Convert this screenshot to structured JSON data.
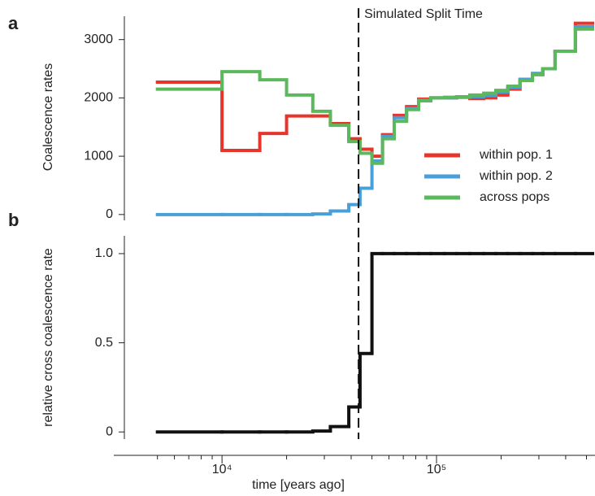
{
  "chart_data": [
    {
      "type": "step",
      "panel_label": "a",
      "ylabel": "Coalescence rates",
      "x": [
        5000,
        10000,
        15000,
        20000,
        26500,
        32000,
        39000,
        44000,
        50000,
        56000,
        63500,
        72500,
        82500,
        94000,
        109000,
        124000,
        143000,
        166000,
        189000,
        215000,
        245000,
        280000,
        313000,
        357000,
        444000
      ],
      "series": [
        {
          "name": "within pop. 1",
          "color": "#e8352b",
          "values": [
            2270,
            1100,
            1390,
            1690,
            1690,
            1560,
            1300,
            1120,
            1000,
            1370,
            1700,
            1850,
            1980,
            2000,
            2000,
            2010,
            1990,
            2000,
            2050,
            2150,
            2300,
            2400,
            2500,
            2800,
            3280
          ]
        },
        {
          "name": "within pop. 2",
          "color": "#4a9fd8",
          "values": [
            0,
            0,
            0,
            0,
            10,
            60,
            170,
            450,
            920,
            1340,
            1660,
            1820,
            1960,
            2000,
            2000,
            2010,
            2020,
            2040,
            2100,
            2180,
            2320,
            2420,
            2500,
            2800,
            3220
          ]
        },
        {
          "name": "across pops",
          "color": "#5cb85c",
          "values": [
            2150,
            2450,
            2310,
            2050,
            1770,
            1530,
            1250,
            1050,
            880,
            1300,
            1600,
            1800,
            1950,
            2000,
            2010,
            2020,
            2050,
            2080,
            2130,
            2200,
            2300,
            2400,
            2500,
            2800,
            3180
          ]
        }
      ],
      "xlim": [
        3130,
        548000
      ],
      "log_x": true,
      "ylim": [
        -100,
        3400
      ],
      "yticks": [
        0,
        1000,
        2000,
        3000
      ],
      "legend": "lower right",
      "annotation": {
        "text": "Simulated Split Time",
        "x": 43300
      }
    },
    {
      "type": "step",
      "panel_label": "b",
      "ylabel": "relative cross coalescence rate",
      "xlabel": "time [years ago]",
      "x": [
        5000,
        10000,
        15000,
        20000,
        26500,
        32000,
        39000,
        44000,
        50000,
        56000,
        63500,
        72500,
        82500,
        94000,
        109000,
        124000,
        143000,
        166000,
        189000,
        215000,
        245000,
        280000,
        313000,
        357000,
        444000
      ],
      "series": [
        {
          "color": "#111111",
          "values": [
            0,
            0,
            0,
            0,
            0.005,
            0.03,
            0.14,
            0.44,
            1,
            1,
            1,
            1,
            1,
            1,
            1,
            1,
            1,
            1,
            1,
            1,
            1,
            1,
            1,
            1,
            1
          ]
        }
      ],
      "xlim": [
        3130,
        548000
      ],
      "log_x": true,
      "xticks": [
        {
          "value": 10000,
          "label": "10⁴"
        },
        {
          "value": 100000,
          "label": "10⁵"
        }
      ],
      "xminorticks": [
        5000,
        6000,
        7000,
        8000,
        9000,
        20000,
        30000,
        40000,
        50000,
        60000,
        70000,
        80000,
        90000,
        200000,
        300000,
        400000,
        500000
      ],
      "ylim": [
        -0.04,
        1.1
      ],
      "yticks": [
        0,
        0.5,
        {
          "value": 1,
          "label": "1.0"
        }
      ]
    }
  ]
}
